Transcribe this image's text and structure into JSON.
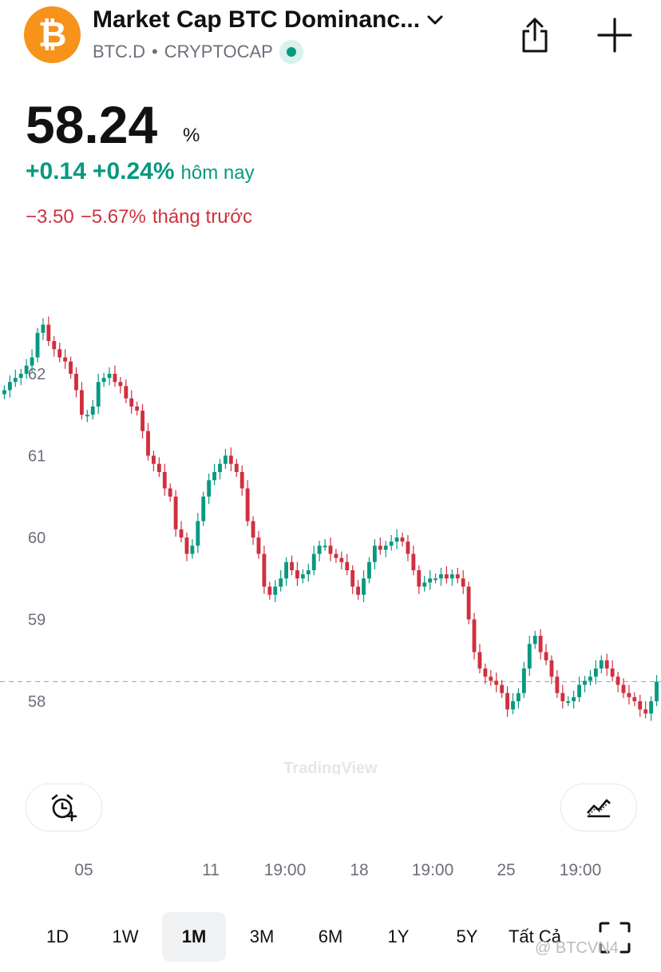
{
  "header": {
    "title": "Market Cap BTC Dominanc...",
    "symbol": "BTC.D",
    "separator": "•",
    "exchange": "CRYPTOCAP",
    "icons": [
      "bitcoin-icon",
      "chevron-down-icon",
      "share-icon",
      "plus-icon"
    ]
  },
  "quote": {
    "price": "58.24",
    "unit": "%",
    "day_change_abs": "+0.14",
    "day_change_pct": "+0.24%",
    "day_label": "hôm nay",
    "month_change_abs": "−3.50",
    "month_change_pct": "−5.67%",
    "month_label": "tháng trước"
  },
  "colors": {
    "up": "#089981",
    "down": "#d0303e",
    "accent": "#f7931a"
  },
  "chart_data": {
    "type": "line",
    "watermark": "TradingView",
    "y_ticks": [
      "62",
      "61",
      "60",
      "59",
      "58"
    ],
    "ylim": [
      57.5,
      62.6
    ],
    "x_ticks": [
      "05",
      "11",
      "19:00",
      "18",
      "19:00",
      "25",
      "19:00"
    ],
    "last_value": 58.24,
    "series": [
      {
        "values": [
          61.8,
          61.9,
          61.95,
          62.0,
          62.1,
          62.2,
          62.5,
          62.6,
          62.4,
          62.3,
          62.2,
          62.15,
          62.0,
          61.8,
          61.5,
          61.5,
          61.6,
          61.9,
          61.95,
          62.0,
          61.9,
          61.85,
          61.7,
          61.6,
          61.55,
          61.3,
          61.0,
          60.9,
          60.8,
          60.6,
          60.5,
          60.1,
          60.0,
          59.8,
          59.9,
          60.2,
          60.5,
          60.7,
          60.8,
          60.9,
          61.0,
          60.9,
          60.8,
          60.6,
          60.2,
          60.0,
          59.8,
          59.4,
          59.3,
          59.4,
          59.5,
          59.7,
          59.6,
          59.5,
          59.55,
          59.6,
          59.8,
          59.9,
          59.9,
          59.8,
          59.75,
          59.7,
          59.6,
          59.4,
          59.3,
          59.5,
          59.7,
          59.9,
          59.85,
          59.9,
          59.95,
          60.0,
          59.95,
          59.8,
          59.6,
          59.4,
          59.45,
          59.5,
          59.5,
          59.55,
          59.5,
          59.55,
          59.5,
          59.4,
          59.0,
          58.6,
          58.4,
          58.3,
          58.25,
          58.2,
          58.1,
          57.9,
          58.0,
          58.1,
          58.4,
          58.7,
          58.8,
          58.6,
          58.5,
          58.3,
          58.1,
          58.0,
          58.0,
          58.05,
          58.2,
          58.25,
          58.3,
          58.4,
          58.5,
          58.4,
          58.3,
          58.2,
          58.1,
          58.05,
          58.0,
          57.9,
          57.85,
          58.0,
          58.24
        ]
      }
    ]
  },
  "controls": {
    "alert_icon": "alarm-plus-icon",
    "indicators_icon": "indicators-icon"
  },
  "ranges": [
    {
      "label": "1D",
      "active": false
    },
    {
      "label": "1W",
      "active": false
    },
    {
      "label": "1M",
      "active": true
    },
    {
      "label": "3M",
      "active": false
    },
    {
      "label": "6M",
      "active": false
    },
    {
      "label": "1Y",
      "active": false
    },
    {
      "label": "5Y",
      "active": false
    },
    {
      "label": "Tất Cả",
      "active": false
    }
  ],
  "footer_credit": "@ BTCVN4"
}
